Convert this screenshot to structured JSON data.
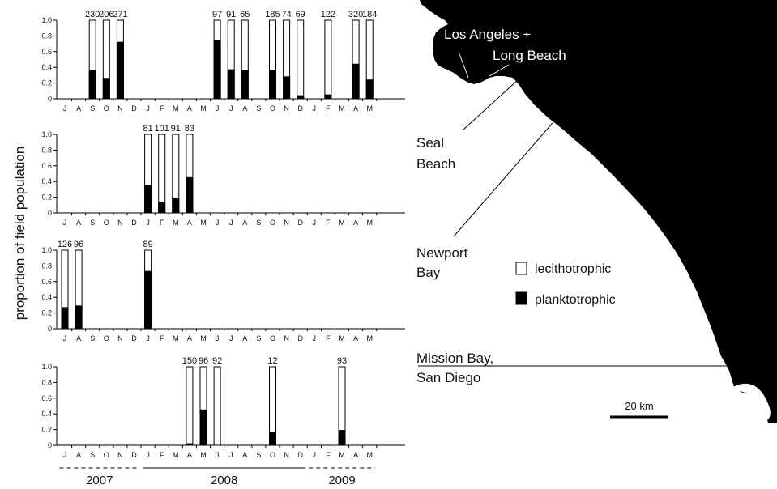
{
  "chart_data": {
    "type": "bar",
    "stacked": true,
    "ylabel": "proportion of field population",
    "ylim": [
      0,
      1.0
    ],
    "yticks": [
      "0",
      "0.2",
      "0.4",
      "0.6",
      "0.8",
      "1.0"
    ],
    "months": [
      "J",
      "A",
      "S",
      "O",
      "N",
      "D",
      "J",
      "F",
      "M",
      "A",
      "M",
      "J",
      "J",
      "A",
      "S",
      "O",
      "N",
      "D",
      "J",
      "F",
      "M",
      "A",
      "M"
    ],
    "years": [
      {
        "label": "2007",
        "from": 0,
        "to": 5,
        "style": "dashed"
      },
      {
        "label": "2008",
        "from": 6,
        "to": 17,
        "style": "solid"
      },
      {
        "label": "2009",
        "from": 18,
        "to": 22,
        "style": "dashed"
      }
    ],
    "legend": {
      "position": "right",
      "items": [
        {
          "label": "lecithotrophic",
          "color": "#ffffff"
        },
        {
          "label": "planktotrophic",
          "color": "#000000"
        }
      ]
    },
    "series_names": [
      "planktotrophic",
      "lecithotrophic"
    ],
    "panels": [
      {
        "site": "Los Angeles + Long Beach",
        "bars": [
          {
            "month_index": 2,
            "n": "230",
            "planktotrophic": 0.36
          },
          {
            "month_index": 3,
            "n": "206",
            "planktotrophic": 0.26
          },
          {
            "month_index": 4,
            "n": "271",
            "planktotrophic": 0.72
          },
          {
            "month_index": 11,
            "n": "97",
            "planktotrophic": 0.74
          },
          {
            "month_index": 12,
            "n": "91",
            "planktotrophic": 0.37
          },
          {
            "month_index": 13,
            "n": "65",
            "planktotrophic": 0.36
          },
          {
            "month_index": 15,
            "n": "185",
            "planktotrophic": 0.36
          },
          {
            "month_index": 16,
            "n": "74",
            "planktotrophic": 0.28
          },
          {
            "month_index": 17,
            "n": "69",
            "planktotrophic": 0.04
          },
          {
            "month_index": 19,
            "n": "122",
            "planktotrophic": 0.05
          },
          {
            "month_index": 21,
            "n": "320",
            "planktotrophic": 0.44
          },
          {
            "month_index": 22,
            "n": "184",
            "planktotrophic": 0.24
          }
        ]
      },
      {
        "site": "Seal Beach",
        "bars": [
          {
            "month_index": 6,
            "n": "81",
            "planktotrophic": 0.35
          },
          {
            "month_index": 7,
            "n": "101",
            "planktotrophic": 0.14
          },
          {
            "month_index": 8,
            "n": "91",
            "planktotrophic": 0.18
          },
          {
            "month_index": 9,
            "n": "83",
            "planktotrophic": 0.45
          }
        ]
      },
      {
        "site": "Newport Bay",
        "bars": [
          {
            "month_index": 0,
            "n": "126",
            "planktotrophic": 0.27
          },
          {
            "month_index": 1,
            "n": "96",
            "planktotrophic": 0.29
          },
          {
            "month_index": 6,
            "n": "89",
            "planktotrophic": 0.73
          }
        ]
      },
      {
        "site": "Mission Bay, San Diego",
        "bars": [
          {
            "month_index": 9,
            "n": "150",
            "planktotrophic": 0.02
          },
          {
            "month_index": 10,
            "n": "96",
            "planktotrophic": 0.45
          },
          {
            "month_index": 11,
            "n": "92",
            "planktotrophic": 0.0
          },
          {
            "month_index": 15,
            "n": "12",
            "planktotrophic": 0.17
          },
          {
            "month_index": 20,
            "n": "93",
            "planktotrophic": 0.19
          }
        ]
      }
    ]
  },
  "map": {
    "labels": [
      {
        "lines": [
          "Los Angeles +",
          "Long Beach"
        ]
      },
      {
        "lines": [
          "Seal",
          "Beach"
        ]
      },
      {
        "lines": [
          "Newport",
          "Bay"
        ]
      },
      {
        "lines": [
          "Mission Bay,",
          "San Diego"
        ]
      }
    ],
    "scale_bar": "20 km",
    "land_color": "#000000",
    "sea_color": "#ffffff"
  }
}
